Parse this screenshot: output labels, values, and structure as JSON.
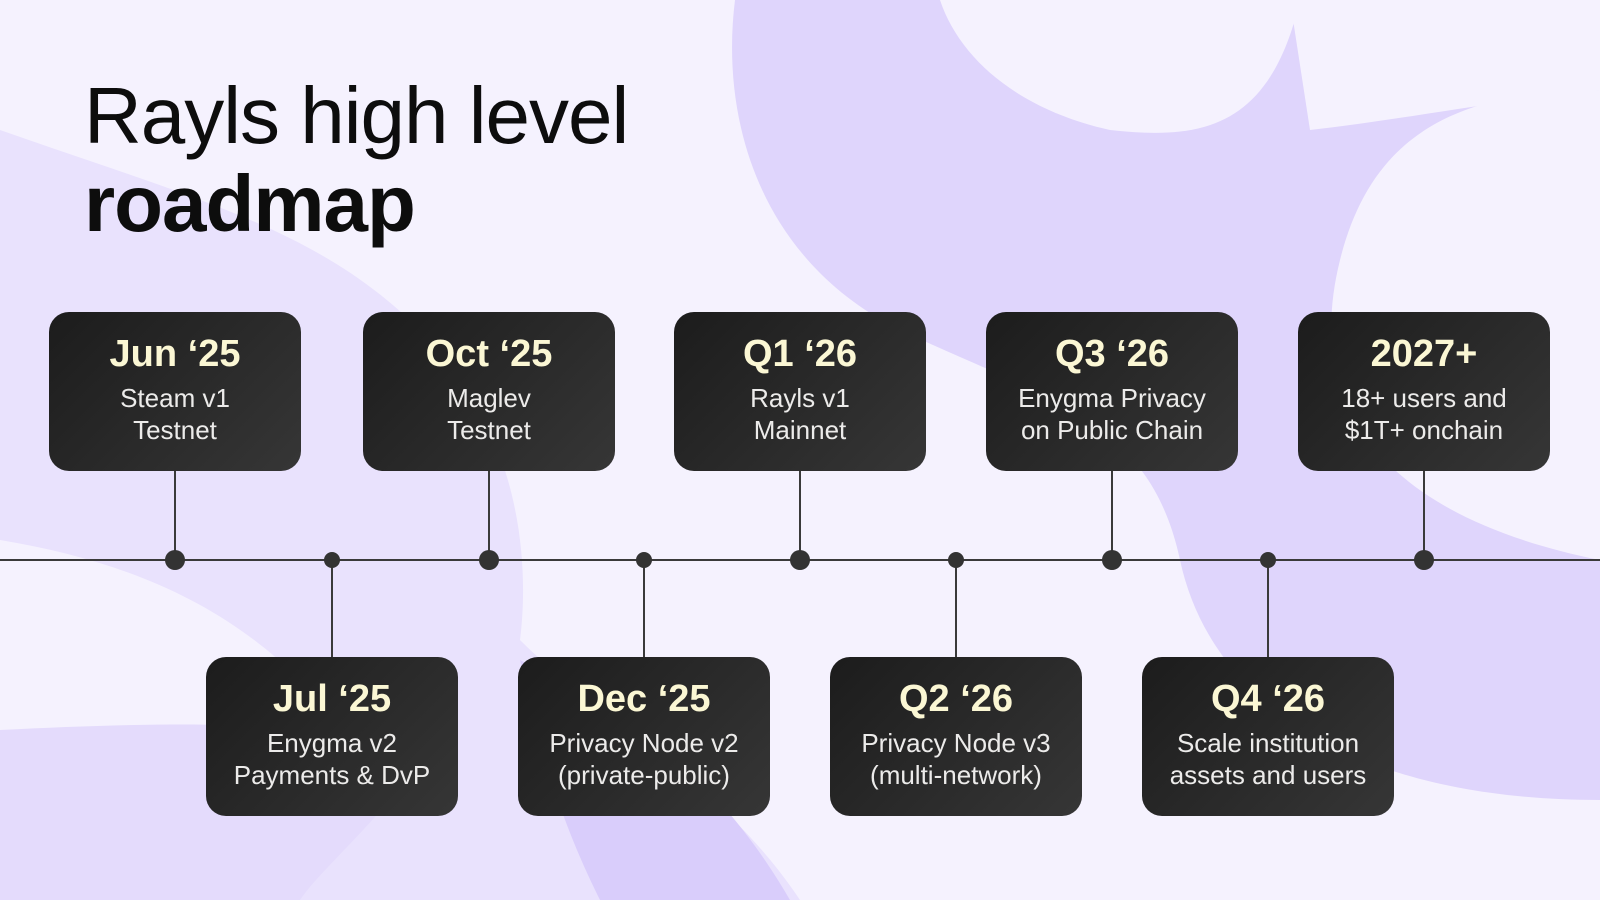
{
  "title": {
    "line1": "Rayls high level",
    "line2": "roadmap"
  },
  "colors": {
    "background": "#f5f2fe",
    "blob": "#d9cdfb",
    "card": "#262626",
    "date_text": "#fbf7d4"
  },
  "milestones_above": [
    {
      "date": "Jun ‘25",
      "line1": "Steam v1",
      "line2": "Testnet"
    },
    {
      "date": "Oct ‘25",
      "line1": "Maglev",
      "line2": "Testnet"
    },
    {
      "date": "Q1 ‘26",
      "line1": "Rayls v1",
      "line2": "Mainnet"
    },
    {
      "date": "Q3 ‘26",
      "line1": "Enygma Privacy",
      "line2": "on Public Chain"
    },
    {
      "date": "2027+",
      "line1": "18+ users and",
      "line2": "$1T+ onchain"
    }
  ],
  "milestones_below": [
    {
      "date": "Jul ‘25",
      "line1": "Enygma v2",
      "line2": "Payments & DvP"
    },
    {
      "date": "Dec ‘25",
      "line1": "Privacy Node v2",
      "line2": "(private-public)"
    },
    {
      "date": "Q2 ‘26",
      "line1": "Privacy Node v3",
      "line2": "(multi-network)"
    },
    {
      "date": "Q4 ‘26",
      "line1": "Scale institution",
      "line2": "assets and users"
    }
  ]
}
